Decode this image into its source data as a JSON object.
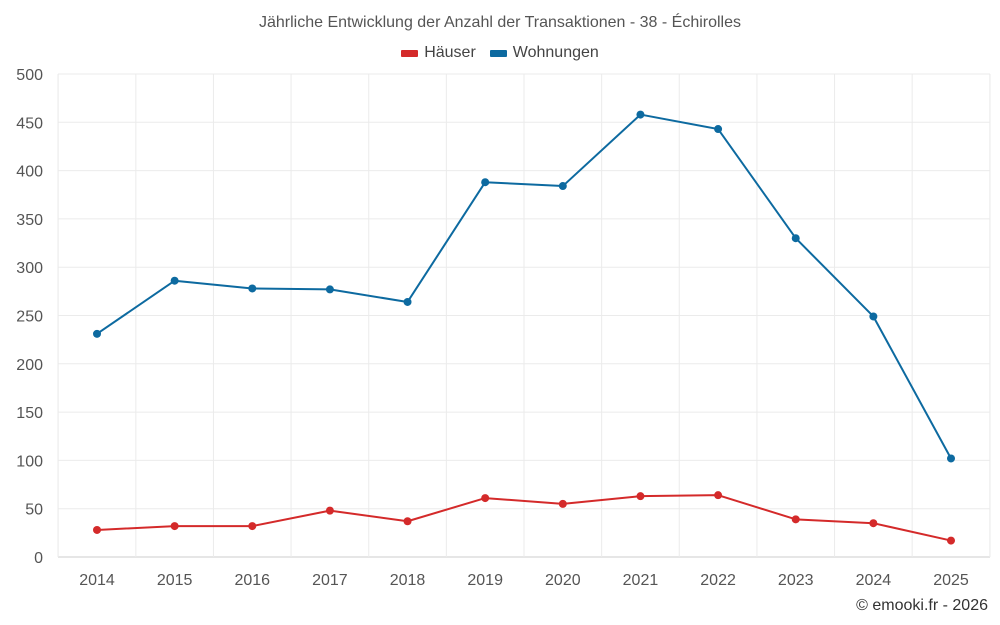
{
  "chart_data": {
    "type": "line",
    "title": "Jährliche Entwicklung der Anzahl der Transaktionen - 38 - Échirolles",
    "xlabel": "",
    "ylabel": "",
    "categories": [
      "2014",
      "2015",
      "2016",
      "2017",
      "2018",
      "2019",
      "2020",
      "2021",
      "2022",
      "2023",
      "2024",
      "2025"
    ],
    "ylim": [
      0,
      500
    ],
    "yticks": [
      "0",
      "50",
      "100",
      "150",
      "200",
      "250",
      "300",
      "350",
      "400",
      "450",
      "500"
    ],
    "grid": true,
    "legend_position": "top-center",
    "series": [
      {
        "name": "Häuser",
        "color": "#d42a2a",
        "values": [
          28,
          32,
          32,
          48,
          37,
          61,
          55,
          63,
          64,
          39,
          35,
          17
        ]
      },
      {
        "name": "Wohnungen",
        "color": "#0d6aa0",
        "values": [
          231,
          286,
          278,
          277,
          264,
          388,
          384,
          458,
          443,
          330,
          249,
          102
        ]
      }
    ]
  },
  "credit": "© emooki.fr - 2026"
}
